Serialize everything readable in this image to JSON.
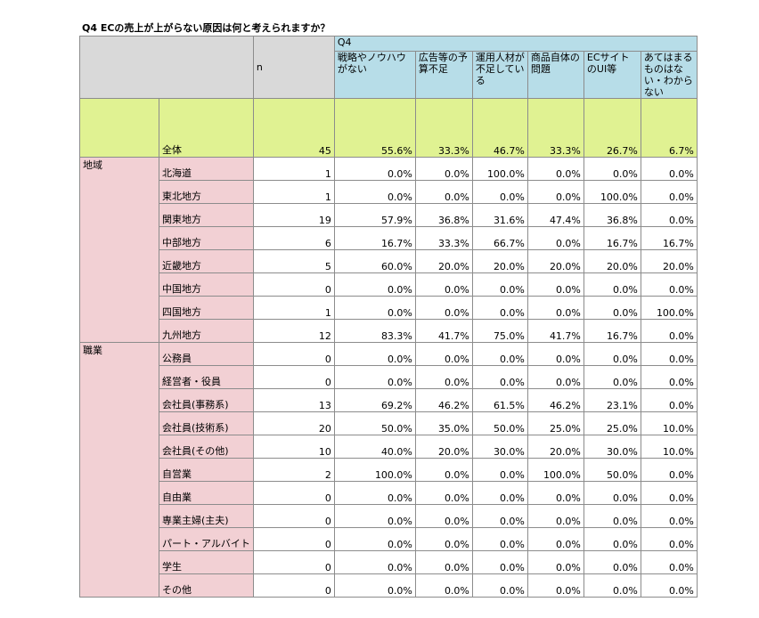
{
  "title": "Q4 ECの売上が上がらない原因は何と考えられますか？",
  "header": {
    "n_label": "n",
    "q_label": "Q4",
    "columns": [
      "戦略やノウハウがない",
      "広告等の予算不足",
      "運用人材が不足している",
      "商品自体の問題",
      "ECサイトのUI等",
      "あてはまるものはない・わからない"
    ]
  },
  "total": {
    "label": "全体",
    "n": "45",
    "values": [
      "55.6%",
      "33.3%",
      "46.7%",
      "33.3%",
      "26.7%",
      "6.7%"
    ]
  },
  "groups": [
    {
      "label": "地域",
      "rows": [
        {
          "label": "北海道",
          "n": "1",
          "values": [
            "0.0%",
            "0.0%",
            "100.0%",
            "0.0%",
            "0.0%",
            "0.0%"
          ]
        },
        {
          "label": "東北地方",
          "n": "1",
          "values": [
            "0.0%",
            "0.0%",
            "0.0%",
            "0.0%",
            "100.0%",
            "0.0%"
          ]
        },
        {
          "label": "関東地方",
          "n": "19",
          "values": [
            "57.9%",
            "36.8%",
            "31.6%",
            "47.4%",
            "36.8%",
            "0.0%"
          ]
        },
        {
          "label": "中部地方",
          "n": "6",
          "values": [
            "16.7%",
            "33.3%",
            "66.7%",
            "0.0%",
            "16.7%",
            "16.7%"
          ]
        },
        {
          "label": "近畿地方",
          "n": "5",
          "values": [
            "60.0%",
            "20.0%",
            "20.0%",
            "20.0%",
            "20.0%",
            "20.0%"
          ]
        },
        {
          "label": "中国地方",
          "n": "0",
          "values": [
            "0.0%",
            "0.0%",
            "0.0%",
            "0.0%",
            "0.0%",
            "0.0%"
          ]
        },
        {
          "label": "四国地方",
          "n": "1",
          "values": [
            "0.0%",
            "0.0%",
            "0.0%",
            "0.0%",
            "0.0%",
            "100.0%"
          ]
        },
        {
          "label": "九州地方",
          "n": "12",
          "values": [
            "83.3%",
            "41.7%",
            "75.0%",
            "41.7%",
            "16.7%",
            "0.0%"
          ]
        }
      ]
    },
    {
      "label": "職業",
      "rows": [
        {
          "label": "公務員",
          "n": "0",
          "values": [
            "0.0%",
            "0.0%",
            "0.0%",
            "0.0%",
            "0.0%",
            "0.0%"
          ]
        },
        {
          "label": "経営者・役員",
          "n": "0",
          "values": [
            "0.0%",
            "0.0%",
            "0.0%",
            "0.0%",
            "0.0%",
            "0.0%"
          ]
        },
        {
          "label": "会社員(事務系)",
          "n": "13",
          "values": [
            "69.2%",
            "46.2%",
            "61.5%",
            "46.2%",
            "23.1%",
            "0.0%"
          ]
        },
        {
          "label": "会社員(技術系)",
          "n": "20",
          "values": [
            "50.0%",
            "35.0%",
            "50.0%",
            "25.0%",
            "25.0%",
            "10.0%"
          ]
        },
        {
          "label": "会社員(その他)",
          "n": "10",
          "values": [
            "40.0%",
            "20.0%",
            "30.0%",
            "20.0%",
            "30.0%",
            "10.0%"
          ]
        },
        {
          "label": "自営業",
          "n": "2",
          "values": [
            "100.0%",
            "0.0%",
            "0.0%",
            "100.0%",
            "50.0%",
            "0.0%"
          ]
        },
        {
          "label": "自由業",
          "n": "0",
          "values": [
            "0.0%",
            "0.0%",
            "0.0%",
            "0.0%",
            "0.0%",
            "0.0%"
          ]
        },
        {
          "label": "専業主婦(主夫)",
          "n": "0",
          "values": [
            "0.0%",
            "0.0%",
            "0.0%",
            "0.0%",
            "0.0%",
            "0.0%"
          ]
        },
        {
          "label": "パート・アルバイト",
          "n": "0",
          "values": [
            "0.0%",
            "0.0%",
            "0.0%",
            "0.0%",
            "0.0%",
            "0.0%"
          ]
        },
        {
          "label": "学生",
          "n": "0",
          "values": [
            "0.0%",
            "0.0%",
            "0.0%",
            "0.0%",
            "0.0%",
            "0.0%"
          ]
        },
        {
          "label": "その他",
          "n": "0",
          "values": [
            "0.0%",
            "0.0%",
            "0.0%",
            "0.0%",
            "0.0%",
            "0.0%"
          ]
        }
      ]
    }
  ],
  "colors": {
    "header_gray": "#d9d9d9",
    "header_blue": "#b7dde8",
    "total_green": "#e0f292",
    "segment_pink": "#f2d0d4"
  }
}
